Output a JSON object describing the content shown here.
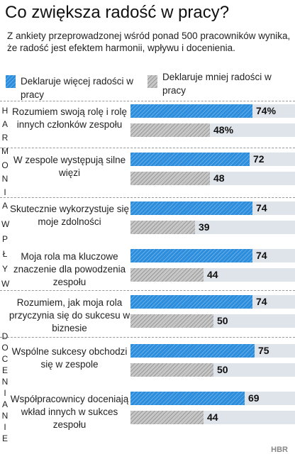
{
  "title": "Co zwiększa radość w pracy?",
  "subtitle": "Z ankiety przeprowadzonej wśród ponad 500 pracowników wynika, że radość jest efektem harmonii, wpływu i docenienia.",
  "colors": {
    "more": "#2d8ddd",
    "less": "#c7c7c7",
    "track": "#dfe3ea"
  },
  "brand": "HBR",
  "chart_data": {
    "type": "bar",
    "orientation": "horizontal",
    "xlim": [
      0,
      100
    ],
    "legend": {
      "placement": "top",
      "entries": [
        "Deklaruje więcej radości w pracy",
        "Deklaruje mniej radości w pracy"
      ]
    },
    "groups": [
      {
        "name": "HARMONIA",
        "categories": [
          0,
          1
        ]
      },
      {
        "name": "WPŁYW",
        "categories": [
          2,
          3,
          4
        ]
      },
      {
        "name": "DOCENIANIE",
        "categories": [
          5,
          6
        ]
      }
    ],
    "categories": [
      "Rozumiem swoją rolę i rolę innych członków zespołu",
      "W zespole występują silne więzi",
      "Skutecznie wykorzystuje się moje zdolności",
      "Moja rola ma kluczowe znaczenie dla powodzenia zespołu",
      "Rozumiem, jak moja rola przyczynia się do sukcesu w biznesie",
      "Wspólne sukcesy obchodzi się w zespole",
      "Współpracownicy doceniają wkład innych w sukces zespołu"
    ],
    "series": [
      {
        "name": "Deklaruje więcej radości w pracy",
        "values": [
          74,
          72,
          74,
          74,
          74,
          75,
          69
        ],
        "labels": [
          "74%",
          "72",
          "74",
          "74",
          "74",
          "75",
          "69"
        ]
      },
      {
        "name": "Deklaruje mniej radości w pracy",
        "values": [
          48,
          48,
          39,
          44,
          50,
          50,
          44
        ],
        "labels": [
          "48%",
          "48",
          "39",
          "44",
          "50",
          "50",
          "44"
        ]
      }
    ]
  }
}
